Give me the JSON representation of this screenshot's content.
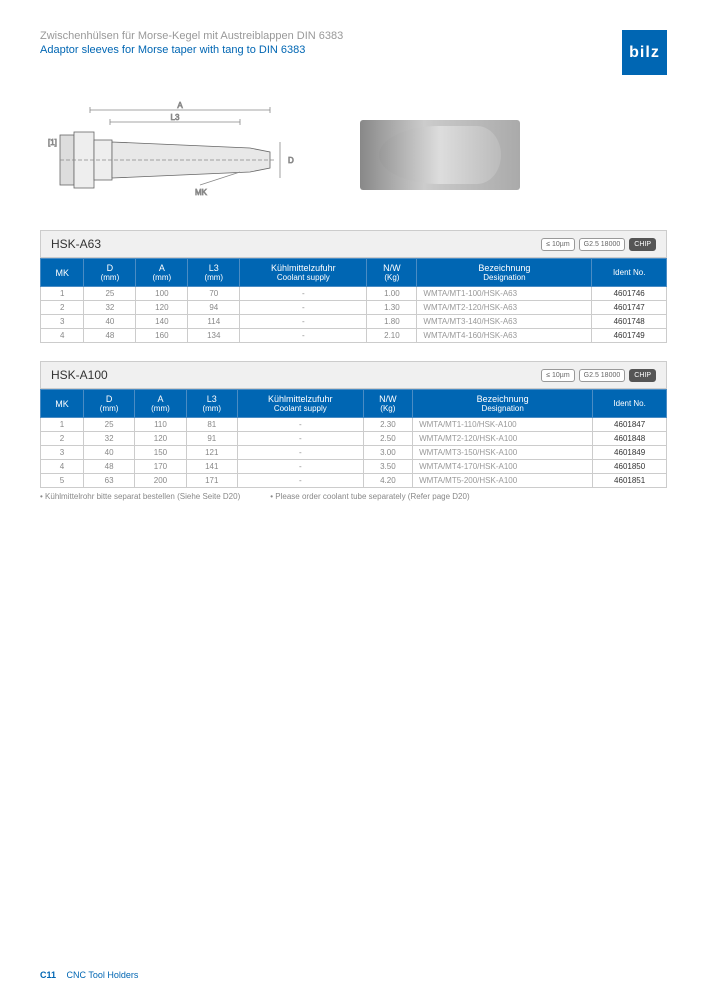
{
  "logo": "bilz",
  "title_de": "Zwischenhülsen für Morse-Kegel mit Austreiblappen DIN 6383",
  "title_en": "Adaptor sleeves for Morse taper with tang to DIN 6383",
  "diagram_labels": {
    "A": "A",
    "L3": "L3",
    "D": "D",
    "MK": "MK",
    "bracket": "[1]"
  },
  "badges": {
    "runout": "≤ 10µm",
    "balance": "G2.5\n18000",
    "chip": "CHIP"
  },
  "columns": [
    {
      "key": "mk",
      "de": "MK",
      "en": ""
    },
    {
      "key": "d",
      "de": "D",
      "en": "(mm)"
    },
    {
      "key": "a",
      "de": "A",
      "en": "(mm)"
    },
    {
      "key": "l3",
      "de": "L3",
      "en": "(mm)"
    },
    {
      "key": "coolant",
      "de": "Kühlmittelzufuhr",
      "en": "Coolant supply"
    },
    {
      "key": "nw",
      "de": "N/W",
      "en": "(Kg)"
    },
    {
      "key": "desig",
      "de": "Bezeichnung",
      "en": "Designation"
    },
    {
      "key": "ident",
      "de": "",
      "en": "Ident No."
    }
  ],
  "table1": {
    "title": "HSK-A63",
    "rows": [
      {
        "mk": "1",
        "d": "25",
        "a": "100",
        "l3": "70",
        "coolant": "-",
        "nw": "1.00",
        "desig": "WMTA/MT1-100/HSK-A63",
        "ident": "4601746"
      },
      {
        "mk": "2",
        "d": "32",
        "a": "120",
        "l3": "94",
        "coolant": "-",
        "nw": "1.30",
        "desig": "WMTA/MT2-120/HSK-A63",
        "ident": "4601747"
      },
      {
        "mk": "3",
        "d": "40",
        "a": "140",
        "l3": "114",
        "coolant": "-",
        "nw": "1.80",
        "desig": "WMTA/MT3-140/HSK-A63",
        "ident": "4601748"
      },
      {
        "mk": "4",
        "d": "48",
        "a": "160",
        "l3": "134",
        "coolant": "-",
        "nw": "2.10",
        "desig": "WMTA/MT4-160/HSK-A63",
        "ident": "4601749"
      }
    ]
  },
  "table2": {
    "title": "HSK-A100",
    "rows": [
      {
        "mk": "1",
        "d": "25",
        "a": "110",
        "l3": "81",
        "coolant": "-",
        "nw": "2.30",
        "desig": "WMTA/MT1-110/HSK-A100",
        "ident": "4601847"
      },
      {
        "mk": "2",
        "d": "32",
        "a": "120",
        "l3": "91",
        "coolant": "-",
        "nw": "2.50",
        "desig": "WMTA/MT2-120/HSK-A100",
        "ident": "4601848"
      },
      {
        "mk": "3",
        "d": "40",
        "a": "150",
        "l3": "121",
        "coolant": "-",
        "nw": "3.00",
        "desig": "WMTA/MT3-150/HSK-A100",
        "ident": "4601849"
      },
      {
        "mk": "4",
        "d": "48",
        "a": "170",
        "l3": "141",
        "coolant": "-",
        "nw": "3.50",
        "desig": "WMTA/MT4-170/HSK-A100",
        "ident": "4601850"
      },
      {
        "mk": "5",
        "d": "63",
        "a": "200",
        "l3": "171",
        "coolant": "-",
        "nw": "4.20",
        "desig": "WMTA/MT5-200/HSK-A100",
        "ident": "4601851"
      }
    ]
  },
  "notes": {
    "de": "Kühlmittelrohr bitte separat bestellen (Siehe Seite D20)",
    "en": "Please order coolant tube separately (Refer page D20)"
  },
  "footer": {
    "page": "C11",
    "section": "CNC Tool Holders"
  },
  "colors": {
    "brand": "#0066b3",
    "header_bg": "#f0f0f0",
    "th_bg": "#0066b3",
    "th_border": "#4a8cc4",
    "cell_border": "#cccccc",
    "muted": "#888888"
  }
}
